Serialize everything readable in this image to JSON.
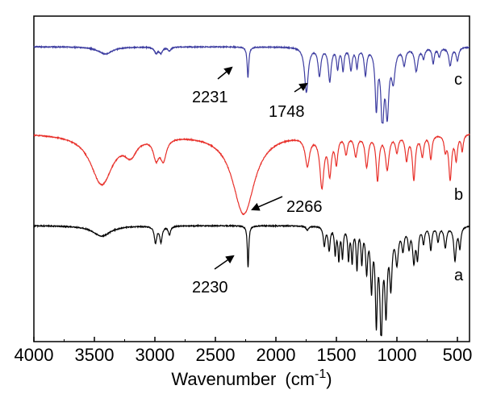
{
  "chart_data": {
    "type": "line",
    "title": "",
    "xlabel": "Wavenumber (cm",
    "xlabel_sup": "-1",
    "xlabel_close": ")",
    "xlim": [
      4000,
      400
    ],
    "x_reversed": true,
    "x_ticks": [
      4000,
      3500,
      3000,
      2500,
      2000,
      1500,
      1000,
      500
    ],
    "x_tick_labels": [
      "4000",
      "3500",
      "3000",
      "2500",
      "2000",
      "1500",
      "1000",
      "500"
    ],
    "y_ticks_shown": false,
    "grid": false,
    "colors": {
      "a": "#000000",
      "b": "#e8302a",
      "c": "#3c3ca0"
    },
    "series": [
      {
        "name": "c",
        "baseline": 0.0,
        "features": [
          [
            3410,
            70,
            0.1
          ],
          [
            2990,
            18,
            0.08
          ],
          [
            2950,
            15,
            0.08
          ],
          [
            2880,
            15,
            0.05
          ],
          [
            2231,
            8,
            0.42
          ],
          [
            1748,
            18,
            0.62
          ],
          [
            1640,
            14,
            0.38
          ],
          [
            1555,
            14,
            0.46
          ],
          [
            1490,
            10,
            0.28
          ],
          [
            1445,
            10,
            0.3
          ],
          [
            1380,
            12,
            0.3
          ],
          [
            1330,
            10,
            0.26
          ],
          [
            1260,
            12,
            0.36
          ],
          [
            1170,
            12,
            0.8
          ],
          [
            1120,
            14,
            1.0
          ],
          [
            1080,
            16,
            0.85
          ],
          [
            1030,
            18,
            0.42
          ],
          [
            940,
            14,
            0.22
          ],
          [
            840,
            16,
            0.32
          ],
          [
            780,
            12,
            0.14
          ],
          [
            700,
            10,
            0.22
          ],
          [
            650,
            12,
            0.12
          ],
          [
            560,
            14,
            0.25
          ],
          [
            500,
            12,
            0.18
          ]
        ]
      },
      {
        "name": "b",
        "baseline": 0.0,
        "features": [
          [
            3440,
            110,
            0.62
          ],
          [
            3200,
            60,
            0.2
          ],
          [
            2990,
            28,
            0.24
          ],
          [
            2930,
            30,
            0.26
          ],
          [
            2266,
            110,
            1.0
          ],
          [
            1740,
            22,
            0.35
          ],
          [
            1620,
            20,
            0.62
          ],
          [
            1555,
            16,
            0.45
          ],
          [
            1500,
            14,
            0.32
          ],
          [
            1420,
            14,
            0.22
          ],
          [
            1340,
            16,
            0.25
          ],
          [
            1250,
            16,
            0.38
          ],
          [
            1160,
            14,
            0.55
          ],
          [
            1080,
            18,
            0.42
          ],
          [
            1000,
            14,
            0.2
          ],
          [
            920,
            14,
            0.3
          ],
          [
            860,
            14,
            0.55
          ],
          [
            790,
            14,
            0.26
          ],
          [
            720,
            12,
            0.3
          ],
          [
            600,
            12,
            0.18
          ],
          [
            560,
            14,
            0.55
          ],
          [
            510,
            12,
            0.3
          ],
          [
            460,
            10,
            0.2
          ]
        ]
      },
      {
        "name": "a",
        "baseline": 0.0,
        "features": [
          [
            3440,
            90,
            0.1
          ],
          [
            2995,
            12,
            0.16
          ],
          [
            2950,
            12,
            0.15
          ],
          [
            2880,
            12,
            0.08
          ],
          [
            2230,
            7,
            0.4
          ],
          [
            1740,
            12,
            0.04
          ],
          [
            1600,
            10,
            0.18
          ],
          [
            1560,
            10,
            0.22
          ],
          [
            1510,
            8,
            0.25
          ],
          [
            1480,
            8,
            0.3
          ],
          [
            1450,
            8,
            0.28
          ],
          [
            1400,
            8,
            0.3
          ],
          [
            1370,
            8,
            0.32
          ],
          [
            1330,
            8,
            0.38
          ],
          [
            1290,
            8,
            0.32
          ],
          [
            1250,
            10,
            0.4
          ],
          [
            1210,
            10,
            0.55
          ],
          [
            1170,
            10,
            0.85
          ],
          [
            1130,
            12,
            1.0
          ],
          [
            1090,
            12,
            0.75
          ],
          [
            1050,
            12,
            0.52
          ],
          [
            1000,
            14,
            0.32
          ],
          [
            950,
            12,
            0.2
          ],
          [
            900,
            10,
            0.18
          ],
          [
            860,
            12,
            0.32
          ],
          [
            830,
            10,
            0.28
          ],
          [
            780,
            10,
            0.15
          ],
          [
            720,
            10,
            0.22
          ],
          [
            660,
            10,
            0.14
          ],
          [
            600,
            12,
            0.2
          ],
          [
            520,
            12,
            0.32
          ],
          [
            480,
            10,
            0.2
          ]
        ]
      }
    ],
    "annotations": [
      {
        "text": "2231",
        "series": "c",
        "x": 2231
      },
      {
        "text": "1748",
        "series": "c",
        "x": 1748
      },
      {
        "text": "2266",
        "series": "b",
        "x": 2266
      },
      {
        "text": "2230",
        "series": "a",
        "x": 2230
      }
    ]
  }
}
